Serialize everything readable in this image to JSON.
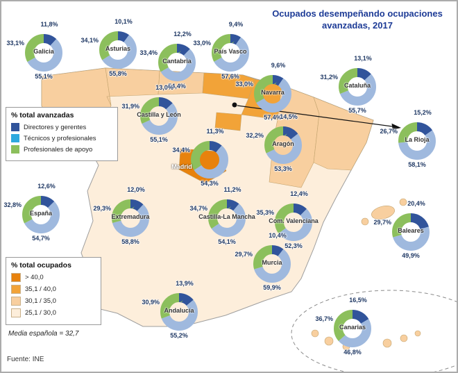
{
  "title": {
    "line1": "Ocupados desempeñando ocupaciones",
    "line2": "avanzadas, 2017",
    "color": "#1D3B96"
  },
  "legend_avanzadas": {
    "title": "% total avanzadas",
    "items": [
      {
        "label": "Directores y gerentes",
        "color": "#31549B"
      },
      {
        "label": "Técnicos y profesionales",
        "color": "#2EA9DE"
      },
      {
        "label": "Profesionales de apoyo",
        "color": "#8CBF5C"
      }
    ]
  },
  "legend_ocupados": {
    "title": "% total ocupados",
    "items": [
      {
        "label": "> 40,0",
        "color": "#E8820D"
      },
      {
        "label": "35,1 / 40,0",
        "color": "#F2A338"
      },
      {
        "label": "30,1 / 35,0",
        "color": "#F8CF9F"
      },
      {
        "label": "25,1 / 30,0",
        "color": "#FDEEDB"
      }
    ]
  },
  "notes": {
    "media": "Media española = 32,7",
    "fuente": "Fuente: INE"
  },
  "chart_data": {
    "type": "pie",
    "subtype": "donut_multiples_on_choropleth_map",
    "unit": "%",
    "title": "Ocupados desempeñando ocupaciones avanzadas, 2017",
    "series_labels": [
      "Directores y gerentes",
      "Técnicos y profesionales",
      "Profesionales de apoyo"
    ],
    "donut_colors": {
      "directores": "#31549B",
      "tecnicos": "#9FB9DE",
      "apoyo": "#8CBF5C"
    },
    "media_espanola": 32.7,
    "regions": [
      {
        "id": "galicia",
        "name": "Galicia",
        "directores": 11.8,
        "tecnicos": 55.1,
        "apoyo": 33.1,
        "map_bucket": "30,1 / 35,0"
      },
      {
        "id": "asturias",
        "name": "Asturias",
        "directores": 10.1,
        "tecnicos": 55.8,
        "apoyo": 34.1,
        "map_bucket": "30,1 / 35,0"
      },
      {
        "id": "cantabria",
        "name": "Cantabria",
        "directores": 12.2,
        "tecnicos": 54.4,
        "apoyo": 33.4,
        "map_bucket": "30,1 / 35,0"
      },
      {
        "id": "pais_vasco",
        "name": "País Vasco",
        "directores": 9.4,
        "tecnicos": 57.6,
        "apoyo": 33.0,
        "map_bucket": "35,1 / 40,0"
      },
      {
        "id": "navarra",
        "name": "Navarra",
        "directores": 9.6,
        "tecnicos": 57.4,
        "apoyo": 33.0,
        "map_bucket": "35,1 / 40,0"
      },
      {
        "id": "la_rioja",
        "name": "La Rioja",
        "directores": 15.2,
        "tecnicos": 58.1,
        "apoyo": 26.7,
        "map_bucket": "35,1 / 40,0"
      },
      {
        "id": "cataluna",
        "name": "Cataluña",
        "directores": 13.1,
        "tecnicos": 55.7,
        "apoyo": 31.2,
        "map_bucket": "30,1 / 35,0"
      },
      {
        "id": "castilla_leon",
        "name": "Castilla y León",
        "directores": 13.0,
        "tecnicos": 55.1,
        "apoyo": 31.9,
        "map_bucket": "25,1 / 30,0"
      },
      {
        "id": "aragon",
        "name": "Aragón",
        "directores": 14.5,
        "tecnicos": 53.3,
        "apoyo": 32.2,
        "map_bucket": "30,1 / 35,0"
      },
      {
        "id": "madrid",
        "name": "Madrid",
        "directores": 11.3,
        "tecnicos": 54.3,
        "apoyo": 34.4,
        "map_bucket": "> 40,0"
      },
      {
        "id": "espana",
        "name": "España",
        "directores": 12.6,
        "tecnicos": 54.7,
        "apoyo": 32.8
      },
      {
        "id": "extremadura",
        "name": "Extremadura",
        "directores": 12.0,
        "tecnicos": 58.8,
        "apoyo": 29.3,
        "map_bucket": "25,1 / 30,0"
      },
      {
        "id": "castilla_mancha",
        "name": "Castilla-La Mancha",
        "directores": 11.2,
        "tecnicos": 54.1,
        "apoyo": 34.7,
        "map_bucket": "25,1 / 30,0"
      },
      {
        "id": "valenciana",
        "name": "Com. Valenciana",
        "directores": 12.4,
        "tecnicos": 52.3,
        "apoyo": 35.3,
        "map_bucket": "25,1 / 30,0"
      },
      {
        "id": "baleares",
        "name": "Baleares",
        "directores": 20.4,
        "tecnicos": 49.9,
        "apoyo": 29.7,
        "map_bucket": "30,1 / 35,0"
      },
      {
        "id": "murcia",
        "name": "Murcia",
        "directores": 10.4,
        "tecnicos": 59.9,
        "apoyo": 29.7,
        "map_bucket": "25,1 / 30,0"
      },
      {
        "id": "andalucia",
        "name": "Andalucía",
        "directores": 13.9,
        "tecnicos": 55.2,
        "apoyo": 30.9,
        "map_bucket": "25,1 / 30,0"
      },
      {
        "id": "canarias",
        "name": "Canarias",
        "directores": 16.5,
        "tecnicos": 46.8,
        "apoyo": 36.7,
        "map_bucket": "30,1 / 35,0"
      }
    ]
  }
}
